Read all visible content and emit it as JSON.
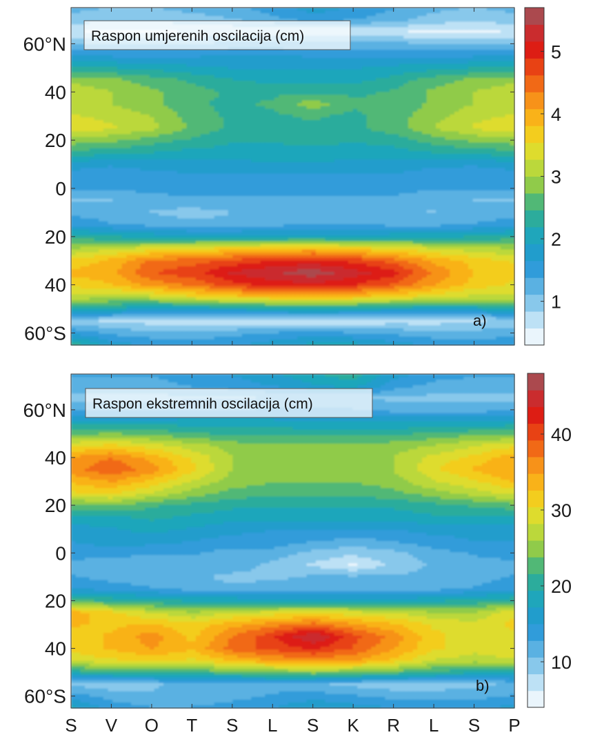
{
  "chart_data": [
    {
      "type": "heatmap",
      "panel_label": "a)",
      "annotation": "Raspon umjerenih oscilacija (cm)",
      "x_categories": [
        "S",
        "V",
        "O",
        "T",
        "S",
        "L",
        "S",
        "K",
        "R",
        "L",
        "S",
        "P"
      ],
      "y_ticks": [
        {
          "value": 60,
          "label": "60°N"
        },
        {
          "value": 40,
          "label": "40"
        },
        {
          "value": 20,
          "label": "20"
        },
        {
          "value": 0,
          "label": "0"
        },
        {
          "value": -20,
          "label": "20"
        },
        {
          "value": -40,
          "label": "40"
        },
        {
          "value": -60,
          "label": "60°S"
        }
      ],
      "ylim": [
        -65,
        75
      ],
      "colorbar": {
        "min": 0.3,
        "max": 5.7,
        "ticks": [
          1,
          2,
          3,
          4,
          5
        ]
      },
      "y": [
        -65,
        -60,
        -55,
        -50,
        -45,
        -40,
        -35,
        -30,
        -25,
        -20,
        -15,
        -10,
        -5,
        0,
        5,
        10,
        15,
        20,
        25,
        30,
        35,
        40,
        45,
        50,
        55,
        60,
        65,
        70,
        75
      ],
      "values": [
        [
          2.4,
          1.8,
          1.6,
          1.5,
          1.6,
          1.8,
          2.0,
          2.0,
          1.8,
          1.6,
          1.5,
          1.6
        ],
        [
          1.6,
          1.3,
          1.2,
          1.2,
          1.3,
          1.4,
          1.5,
          1.4,
          1.3,
          1.2,
          1.2,
          1.3
        ],
        [
          0.9,
          0.8,
          0.7,
          0.6,
          0.6,
          0.6,
          0.6,
          0.6,
          0.7,
          0.7,
          0.8,
          0.9
        ],
        [
          2.2,
          2.1,
          1.9,
          1.9,
          2.0,
          2.1,
          2.2,
          2.1,
          2.0,
          1.9,
          2.0,
          2.1
        ],
        [
          3.2,
          3.1,
          3.2,
          3.5,
          3.7,
          3.8,
          3.9,
          3.8,
          3.6,
          3.4,
          3.2,
          3.2
        ],
        [
          3.6,
          3.8,
          4.2,
          4.4,
          4.8,
          5.0,
          5.1,
          4.9,
          4.6,
          4.1,
          3.7,
          3.5
        ],
        [
          3.9,
          4.0,
          4.6,
          4.8,
          5.2,
          5.4,
          5.6,
          5.3,
          5.0,
          4.3,
          3.8,
          3.6
        ],
        [
          3.6,
          3.9,
          4.4,
          4.5,
          4.7,
          4.9,
          5.0,
          4.8,
          4.5,
          4.0,
          3.7,
          3.5
        ],
        [
          3.0,
          3.2,
          3.4,
          3.5,
          3.7,
          3.8,
          3.9,
          3.7,
          3.5,
          3.3,
          3.1,
          3.0
        ],
        [
          2.3,
          2.2,
          2.1,
          2.0,
          2.0,
          2.0,
          2.0,
          2.0,
          2.1,
          2.1,
          2.2,
          2.3
        ],
        [
          1.6,
          1.4,
          1.3,
          1.2,
          1.2,
          1.3,
          1.4,
          1.4,
          1.3,
          1.3,
          1.4,
          1.5
        ],
        [
          1.3,
          1.2,
          1.1,
          1.0,
          1.1,
          1.1,
          1.2,
          1.2,
          1.1,
          1.1,
          1.2,
          1.3
        ],
        [
          1.1,
          1.1,
          1.2,
          1.3,
          1.3,
          1.3,
          1.3,
          1.3,
          1.3,
          1.2,
          1.1,
          1.1
        ],
        [
          1.4,
          1.4,
          1.5,
          1.6,
          1.5,
          1.5,
          1.5,
          1.5,
          1.5,
          1.4,
          1.4,
          1.4
        ],
        [
          1.5,
          1.4,
          1.5,
          1.6,
          1.6,
          1.6,
          1.6,
          1.6,
          1.6,
          1.5,
          1.4,
          1.5
        ],
        [
          1.8,
          1.7,
          1.8,
          1.8,
          1.8,
          1.9,
          1.9,
          1.8,
          1.8,
          1.7,
          1.7,
          1.8
        ],
        [
          2.4,
          2.3,
          2.2,
          2.1,
          2.1,
          2.1,
          2.1,
          2.1,
          2.1,
          2.2,
          2.3,
          2.4
        ],
        [
          2.9,
          2.8,
          2.6,
          2.4,
          2.2,
          2.2,
          2.3,
          2.2,
          2.3,
          2.6,
          2.8,
          2.9
        ],
        [
          3.5,
          3.3,
          3.1,
          2.7,
          2.4,
          2.4,
          2.4,
          2.4,
          2.6,
          3.0,
          3.3,
          3.5
        ],
        [
          3.3,
          3.2,
          3.0,
          2.6,
          2.4,
          2.4,
          2.5,
          2.4,
          2.6,
          2.9,
          3.2,
          3.3
        ],
        [
          3.1,
          3.0,
          2.8,
          2.5,
          2.4,
          2.5,
          2.9,
          2.5,
          2.5,
          2.8,
          3.0,
          3.1
        ],
        [
          3.2,
          3.0,
          2.8,
          2.6,
          2.4,
          2.4,
          2.4,
          2.4,
          2.5,
          2.8,
          3.0,
          3.2
        ],
        [
          2.9,
          2.8,
          2.6,
          2.4,
          2.2,
          2.1,
          2.1,
          2.1,
          2.3,
          2.6,
          2.8,
          2.9
        ],
        [
          2.3,
          2.2,
          2.1,
          2.0,
          1.9,
          1.9,
          1.9,
          1.9,
          2.0,
          2.1,
          2.2,
          2.3
        ],
        [
          1.6,
          1.6,
          1.6,
          1.6,
          1.7,
          1.7,
          1.6,
          1.6,
          1.6,
          1.6,
          1.6,
          1.6
        ],
        [
          1.1,
          1.1,
          1.1,
          1.1,
          1.2,
          1.2,
          1.2,
          1.2,
          1.2,
          1.1,
          1.1,
          1.1
        ],
        [
          0.6,
          0.5,
          0.5,
          0.6,
          0.6,
          0.6,
          0.6,
          0.6,
          0.6,
          0.5,
          0.5,
          0.6
        ],
        [
          1.0,
          0.9,
          0.9,
          1.0,
          1.1,
          1.3,
          1.5,
          1.4,
          1.2,
          1.0,
          0.9,
          1.0
        ],
        [
          1.2,
          1.1,
          1.1,
          1.2,
          1.3,
          1.5,
          1.8,
          1.6,
          1.4,
          1.2,
          1.1,
          1.2
        ]
      ]
    },
    {
      "type": "heatmap",
      "panel_label": "b)",
      "annotation": "Raspon ekstremnih oscilacija (cm)",
      "x_categories": [
        "S",
        "V",
        "O",
        "T",
        "S",
        "L",
        "S",
        "K",
        "R",
        "L",
        "S",
        "P"
      ],
      "y_ticks": [
        {
          "value": 60,
          "label": "60°N"
        },
        {
          "value": 40,
          "label": "40"
        },
        {
          "value": 20,
          "label": "20"
        },
        {
          "value": 0,
          "label": "0"
        },
        {
          "value": -20,
          "label": "20"
        },
        {
          "value": -40,
          "label": "40"
        },
        {
          "value": -60,
          "label": "60°S"
        }
      ],
      "ylim": [
        -65,
        75
      ],
      "colorbar": {
        "min": 4,
        "max": 48,
        "ticks": [
          10,
          20,
          30,
          40
        ]
      },
      "y": [
        -65,
        -60,
        -55,
        -50,
        -45,
        -40,
        -35,
        -30,
        -25,
        -20,
        -15,
        -10,
        -5,
        0,
        5,
        10,
        15,
        20,
        25,
        30,
        35,
        40,
        45,
        50,
        55,
        60,
        65,
        70,
        75
      ],
      "values": [
        [
          18,
          14,
          13,
          13,
          14,
          15,
          17,
          16,
          15,
          14,
          14,
          16
        ],
        [
          14,
          12,
          11,
          11,
          12,
          13,
          14,
          13,
          12,
          12,
          12,
          13
        ],
        [
          10,
          9,
          10,
          12,
          11,
          12,
          11,
          10,
          9,
          9,
          10,
          11
        ],
        [
          20,
          21,
          21,
          22,
          23,
          24,
          25,
          24,
          23,
          21,
          20,
          20
        ],
        [
          29,
          30,
          31,
          30,
          33,
          35,
          36,
          35,
          32,
          28,
          27,
          28
        ],
        [
          31,
          33,
          35,
          33,
          38,
          40,
          42,
          39,
          35,
          31,
          29,
          30
        ],
        [
          31,
          33,
          36,
          32,
          37,
          41,
          46,
          40,
          36,
          31,
          29,
          30
        ],
        [
          33,
          32,
          33,
          31,
          34,
          36,
          38,
          35,
          33,
          30,
          29,
          31
        ],
        [
          34,
          31,
          28,
          26,
          28,
          29,
          30,
          29,
          28,
          26,
          26,
          30
        ],
        [
          22,
          21,
          20,
          19,
          19,
          18,
          18,
          18,
          18,
          19,
          20,
          21
        ],
        [
          15,
          14,
          13,
          12,
          11,
          12,
          12,
          12,
          12,
          12,
          13,
          14
        ],
        [
          13,
          12,
          11,
          11,
          10,
          10,
          11,
          11,
          11,
          11,
          12,
          13
        ],
        [
          12,
          11,
          11,
          12,
          12,
          10,
          8,
          6,
          9,
          11,
          12,
          12
        ],
        [
          14,
          14,
          13,
          13,
          12,
          12,
          10,
          9,
          10,
          12,
          13,
          14
        ],
        [
          15,
          16,
          16,
          15,
          14,
          14,
          13,
          12,
          13,
          14,
          15,
          15
        ],
        [
          16,
          17,
          18,
          17,
          16,
          15,
          15,
          15,
          15,
          16,
          16,
          16
        ],
        [
          19,
          19,
          20,
          19,
          18,
          18,
          18,
          18,
          18,
          19,
          19,
          19
        ],
        [
          23,
          24,
          22,
          21,
          20,
          20,
          20,
          20,
          20,
          21,
          22,
          23
        ],
        [
          30,
          31,
          28,
          25,
          23,
          22,
          22,
          22,
          23,
          25,
          27,
          29
        ],
        [
          33,
          35,
          32,
          28,
          25,
          24,
          24,
          24,
          25,
          28,
          30,
          33
        ],
        [
          36,
          39,
          36,
          31,
          26,
          25,
          25,
          25,
          26,
          30,
          33,
          35
        ],
        [
          35,
          37,
          34,
          30,
          26,
          25,
          25,
          25,
          26,
          29,
          31,
          34
        ],
        [
          30,
          31,
          29,
          27,
          25,
          24,
          24,
          24,
          25,
          26,
          28,
          30
        ],
        [
          23,
          24,
          23,
          22,
          21,
          21,
          21,
          21,
          21,
          22,
          23,
          23
        ],
        [
          18,
          18,
          18,
          18,
          18,
          18,
          17,
          17,
          17,
          17,
          17,
          18
        ],
        [
          12,
          12,
          12,
          13,
          13,
          13,
          13,
          13,
          12,
          12,
          12,
          12
        ],
        [
          10,
          10,
          10,
          10,
          10,
          11,
          11,
          11,
          10,
          10,
          10,
          10
        ],
        [
          12,
          12,
          12,
          13,
          14,
          15,
          17,
          18,
          14,
          12,
          12,
          12
        ],
        [
          13,
          13,
          13,
          14,
          15,
          17,
          19,
          21,
          16,
          14,
          13,
          13
        ]
      ]
    }
  ]
}
